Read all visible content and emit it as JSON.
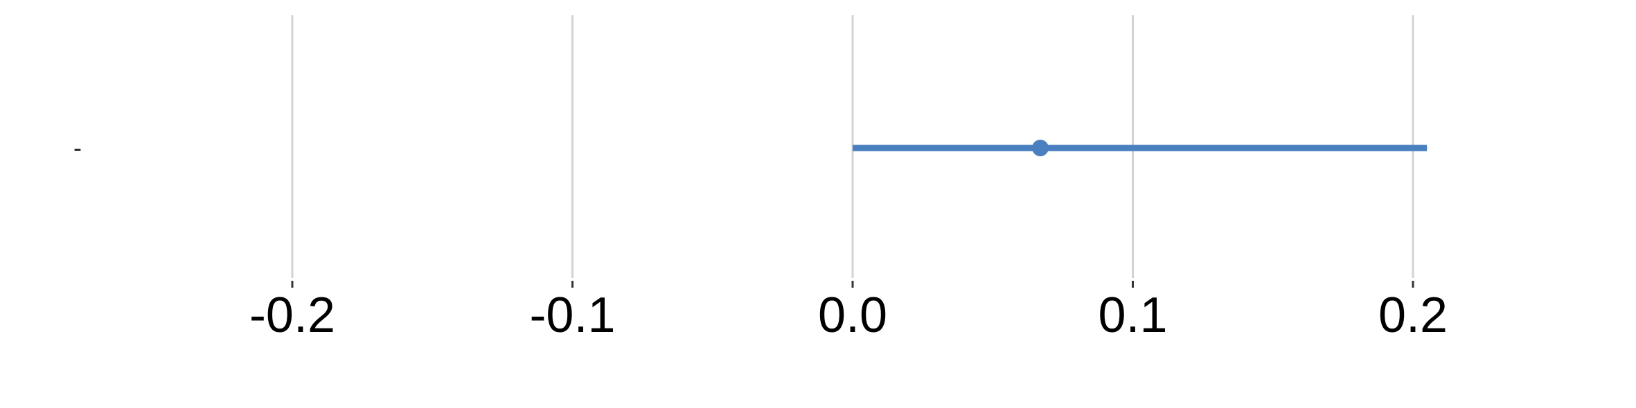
{
  "chart_data": {
    "type": "scatter",
    "subtype": "forest-plot",
    "title": "",
    "xlabel": "",
    "ylabel": "",
    "xlim": [
      -0.2,
      0.2
    ],
    "xticks": [
      -0.2,
      -0.1,
      0.0,
      0.1,
      0.2
    ],
    "xtick_labels": [
      "-0.2",
      "-0.1",
      "0.0",
      "0.1",
      "0.2"
    ],
    "grid": "vertical",
    "rows": [
      {
        "label": "-",
        "estimate": 0.067,
        "lower": 0.0,
        "upper": 0.205
      }
    ],
    "colors": {
      "series": "#4a7fc0",
      "grid": "#d3d3d3",
      "tick": "#333333",
      "text": "#000000"
    }
  }
}
